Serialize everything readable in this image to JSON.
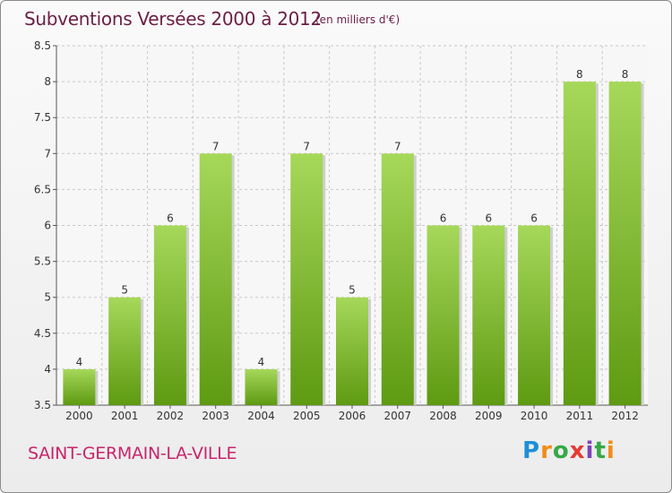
{
  "header": {
    "title": "Subventions Versées 2000 à 2012",
    "unit": "(en milliers d'€)"
  },
  "footer": {
    "place": "SAINT-GERMAIN-LA-VILLE",
    "logo": "Proxiti"
  },
  "colors": {
    "bar_light": "#a6d85a",
    "bar_dark": "#5e9a12",
    "grid": "#c8c8c8",
    "title": "#6a1f45",
    "place": "#c8256b"
  },
  "chart_data": {
    "type": "bar",
    "title": "Subventions Versées 2000 à 2012",
    "subtitle": "(en milliers d'€)",
    "xlabel": "",
    "ylabel": "",
    "categories": [
      "2000",
      "2001",
      "2002",
      "2003",
      "2004",
      "2005",
      "2006",
      "2007",
      "2008",
      "2009",
      "2010",
      "2011",
      "2012"
    ],
    "values": [
      4,
      5,
      6,
      7,
      4,
      7,
      5,
      7,
      6,
      6,
      6,
      8,
      8
    ],
    "data_labels": [
      "4",
      "5",
      "6",
      "7",
      "4",
      "7",
      "5",
      "7",
      "6",
      "6",
      "6",
      "8",
      "8"
    ],
    "ylim": [
      3.5,
      8.5
    ],
    "yticks": [
      "3.5",
      "4",
      "4.5",
      "5",
      "5.5",
      "6",
      "6.5",
      "7",
      "7.5",
      "8",
      "8.5"
    ],
    "grid": true,
    "legend": "none"
  }
}
